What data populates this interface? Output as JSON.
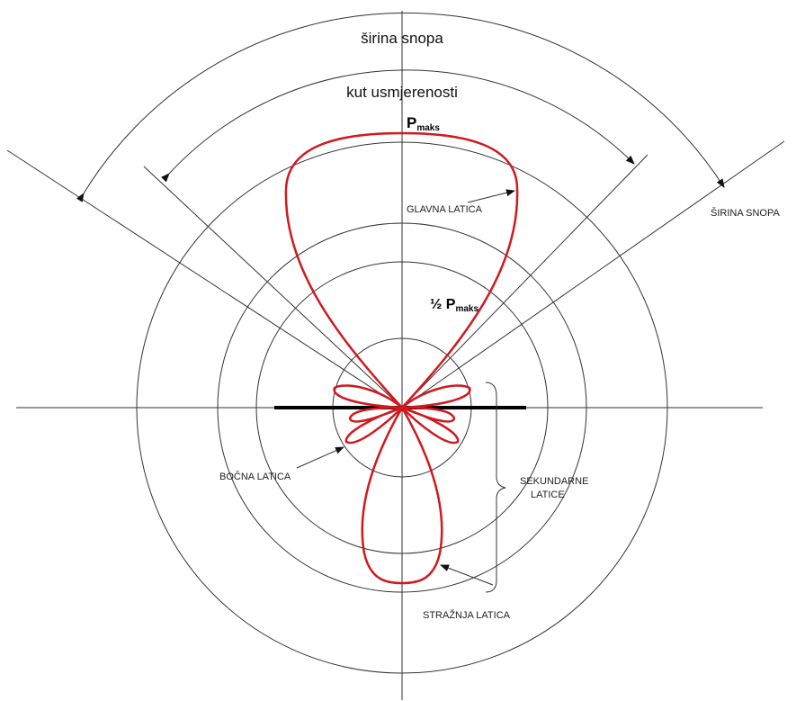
{
  "labels": {
    "beam_width": "širina snopa",
    "directivity_angle": "kut usmjerenosti",
    "p_max": {
      "symbol": "P",
      "subscript": "maks"
    },
    "main_lobe": "GLAVNA LATICA",
    "beam_width_right": "ŠIRINA SNOPA",
    "half_p_max": {
      "symbol": "½ P",
      "subscript": "maks"
    },
    "side_lobe": "BOČNA LATICA",
    "secondary_lobes": [
      "SEKUNDARNE",
      "LATICE"
    ],
    "back_lobe": "STRAŽNJA LATICA"
  }
}
